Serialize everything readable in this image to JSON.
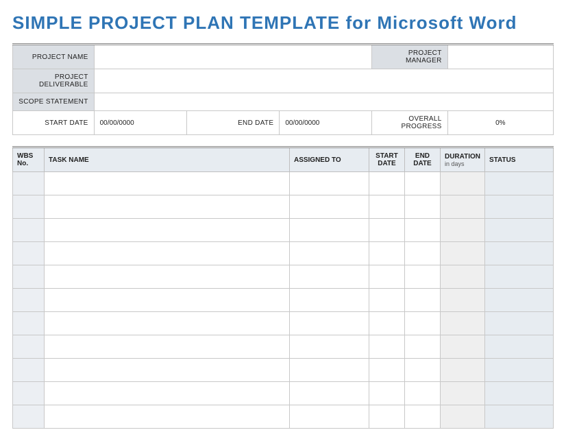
{
  "title": "SIMPLE PROJECT PLAN TEMPLATE for Microsoft Word",
  "meta": {
    "projectNameLabel": "PROJECT NAME",
    "projectNameValue": "",
    "projectManagerLabel": "PROJECT MANAGER",
    "projectManagerValue": "",
    "projectDeliverableLabel": "PROJECT DELIVERABLE",
    "projectDeliverableValue": "",
    "scopeStatementLabel": "SCOPE STATEMENT",
    "scopeStatementValue": "",
    "startDateLabel": "START DATE",
    "startDateValue": "00/00/0000",
    "endDateLabel": "END DATE",
    "endDateValue": "00/00/0000",
    "overallProgressLabel": "OVERALL PROGRESS",
    "overallProgressValue": "0%"
  },
  "columns": {
    "wbs": "WBS No.",
    "task": "TASK NAME",
    "assigned": "ASSIGNED TO",
    "startDate": "START DATE",
    "endDate": "END DATE",
    "duration": "DURATION",
    "durationSub": "in days",
    "status": "STATUS"
  },
  "rows": [
    {
      "wbs": "",
      "task": "",
      "assigned": "",
      "start": "",
      "end": "",
      "duration": "",
      "status": ""
    },
    {
      "wbs": "",
      "task": "",
      "assigned": "",
      "start": "",
      "end": "",
      "duration": "",
      "status": ""
    },
    {
      "wbs": "",
      "task": "",
      "assigned": "",
      "start": "",
      "end": "",
      "duration": "",
      "status": ""
    },
    {
      "wbs": "",
      "task": "",
      "assigned": "",
      "start": "",
      "end": "",
      "duration": "",
      "status": ""
    },
    {
      "wbs": "",
      "task": "",
      "assigned": "",
      "start": "",
      "end": "",
      "duration": "",
      "status": ""
    },
    {
      "wbs": "",
      "task": "",
      "assigned": "",
      "start": "",
      "end": "",
      "duration": "",
      "status": ""
    },
    {
      "wbs": "",
      "task": "",
      "assigned": "",
      "start": "",
      "end": "",
      "duration": "",
      "status": ""
    },
    {
      "wbs": "",
      "task": "",
      "assigned": "",
      "start": "",
      "end": "",
      "duration": "",
      "status": ""
    },
    {
      "wbs": "",
      "task": "",
      "assigned": "",
      "start": "",
      "end": "",
      "duration": "",
      "status": ""
    },
    {
      "wbs": "",
      "task": "",
      "assigned": "",
      "start": "",
      "end": "",
      "duration": "",
      "status": ""
    },
    {
      "wbs": "",
      "task": "",
      "assigned": "",
      "start": "",
      "end": "",
      "duration": "",
      "status": ""
    }
  ],
  "style": {
    "titleColor": "#2f75b5",
    "metaLabelBg": "#dbdfe4",
    "headerBg": "#e7ecf1",
    "wbsCellBg": "#eceff3",
    "durationCellBg": "#efefef",
    "statusCellBg": "#e7ecf1",
    "borderColor": "#c8c8c8"
  }
}
